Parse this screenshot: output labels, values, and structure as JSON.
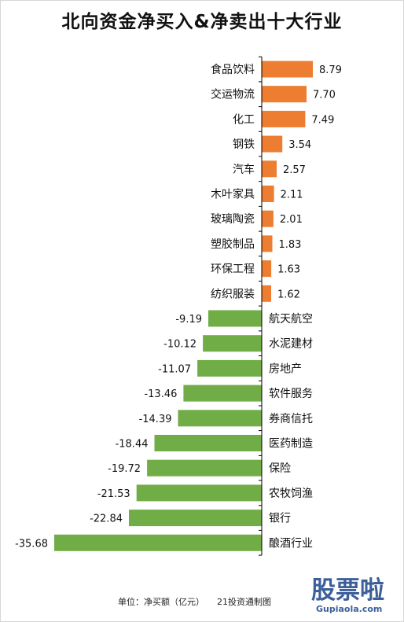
{
  "title": "北向资金净买入&净卖出十大行业",
  "footer": {
    "unit_label": "单位：净买额（亿元）",
    "source": "21投资通制图"
  },
  "watermark": {
    "chars": "股票啦",
    "site": "Gupiaola.com"
  },
  "colors": {
    "positive": "#ED7D31",
    "negative": "#70AD47",
    "axis": "#000000"
  },
  "chart_data": {
    "type": "bar",
    "orientation": "horizontal",
    "title": "北向资金净买入&净卖出十大行业",
    "categories": [
      "食品饮料",
      "交运物流",
      "化工",
      "钢铁",
      "汽车",
      "木叶家具",
      "玻璃陶瓷",
      "塑胶制品",
      "环保工程",
      "纺织服装",
      "航天航空",
      "水泥建材",
      "房地产",
      "软件服务",
      "券商信托",
      "医药制造",
      "保险",
      "农牧饲渔",
      "银行",
      "酿酒行业"
    ],
    "values": [
      8.79,
      7.7,
      7.49,
      3.54,
      2.57,
      2.11,
      2.01,
      1.83,
      1.63,
      1.62,
      -9.19,
      -10.12,
      -11.07,
      -13.46,
      -14.39,
      -18.44,
      -19.72,
      -21.53,
      -22.84,
      -35.68
    ],
    "value_labels": [
      "8.79",
      "7.70",
      "7.49",
      "3.54",
      "2.57",
      "2.11",
      "2.01",
      "1.83",
      "1.63",
      "1.62",
      "-9.19",
      "-10.12",
      "-11.07",
      "-13.46",
      "-14.39",
      "-18.44",
      "-19.72",
      "-21.53",
      "-22.84",
      "-35.68"
    ],
    "xlabel": "",
    "ylabel": "",
    "xlim": [
      -35.68,
      8.79
    ],
    "grid": false,
    "legend": "none"
  }
}
